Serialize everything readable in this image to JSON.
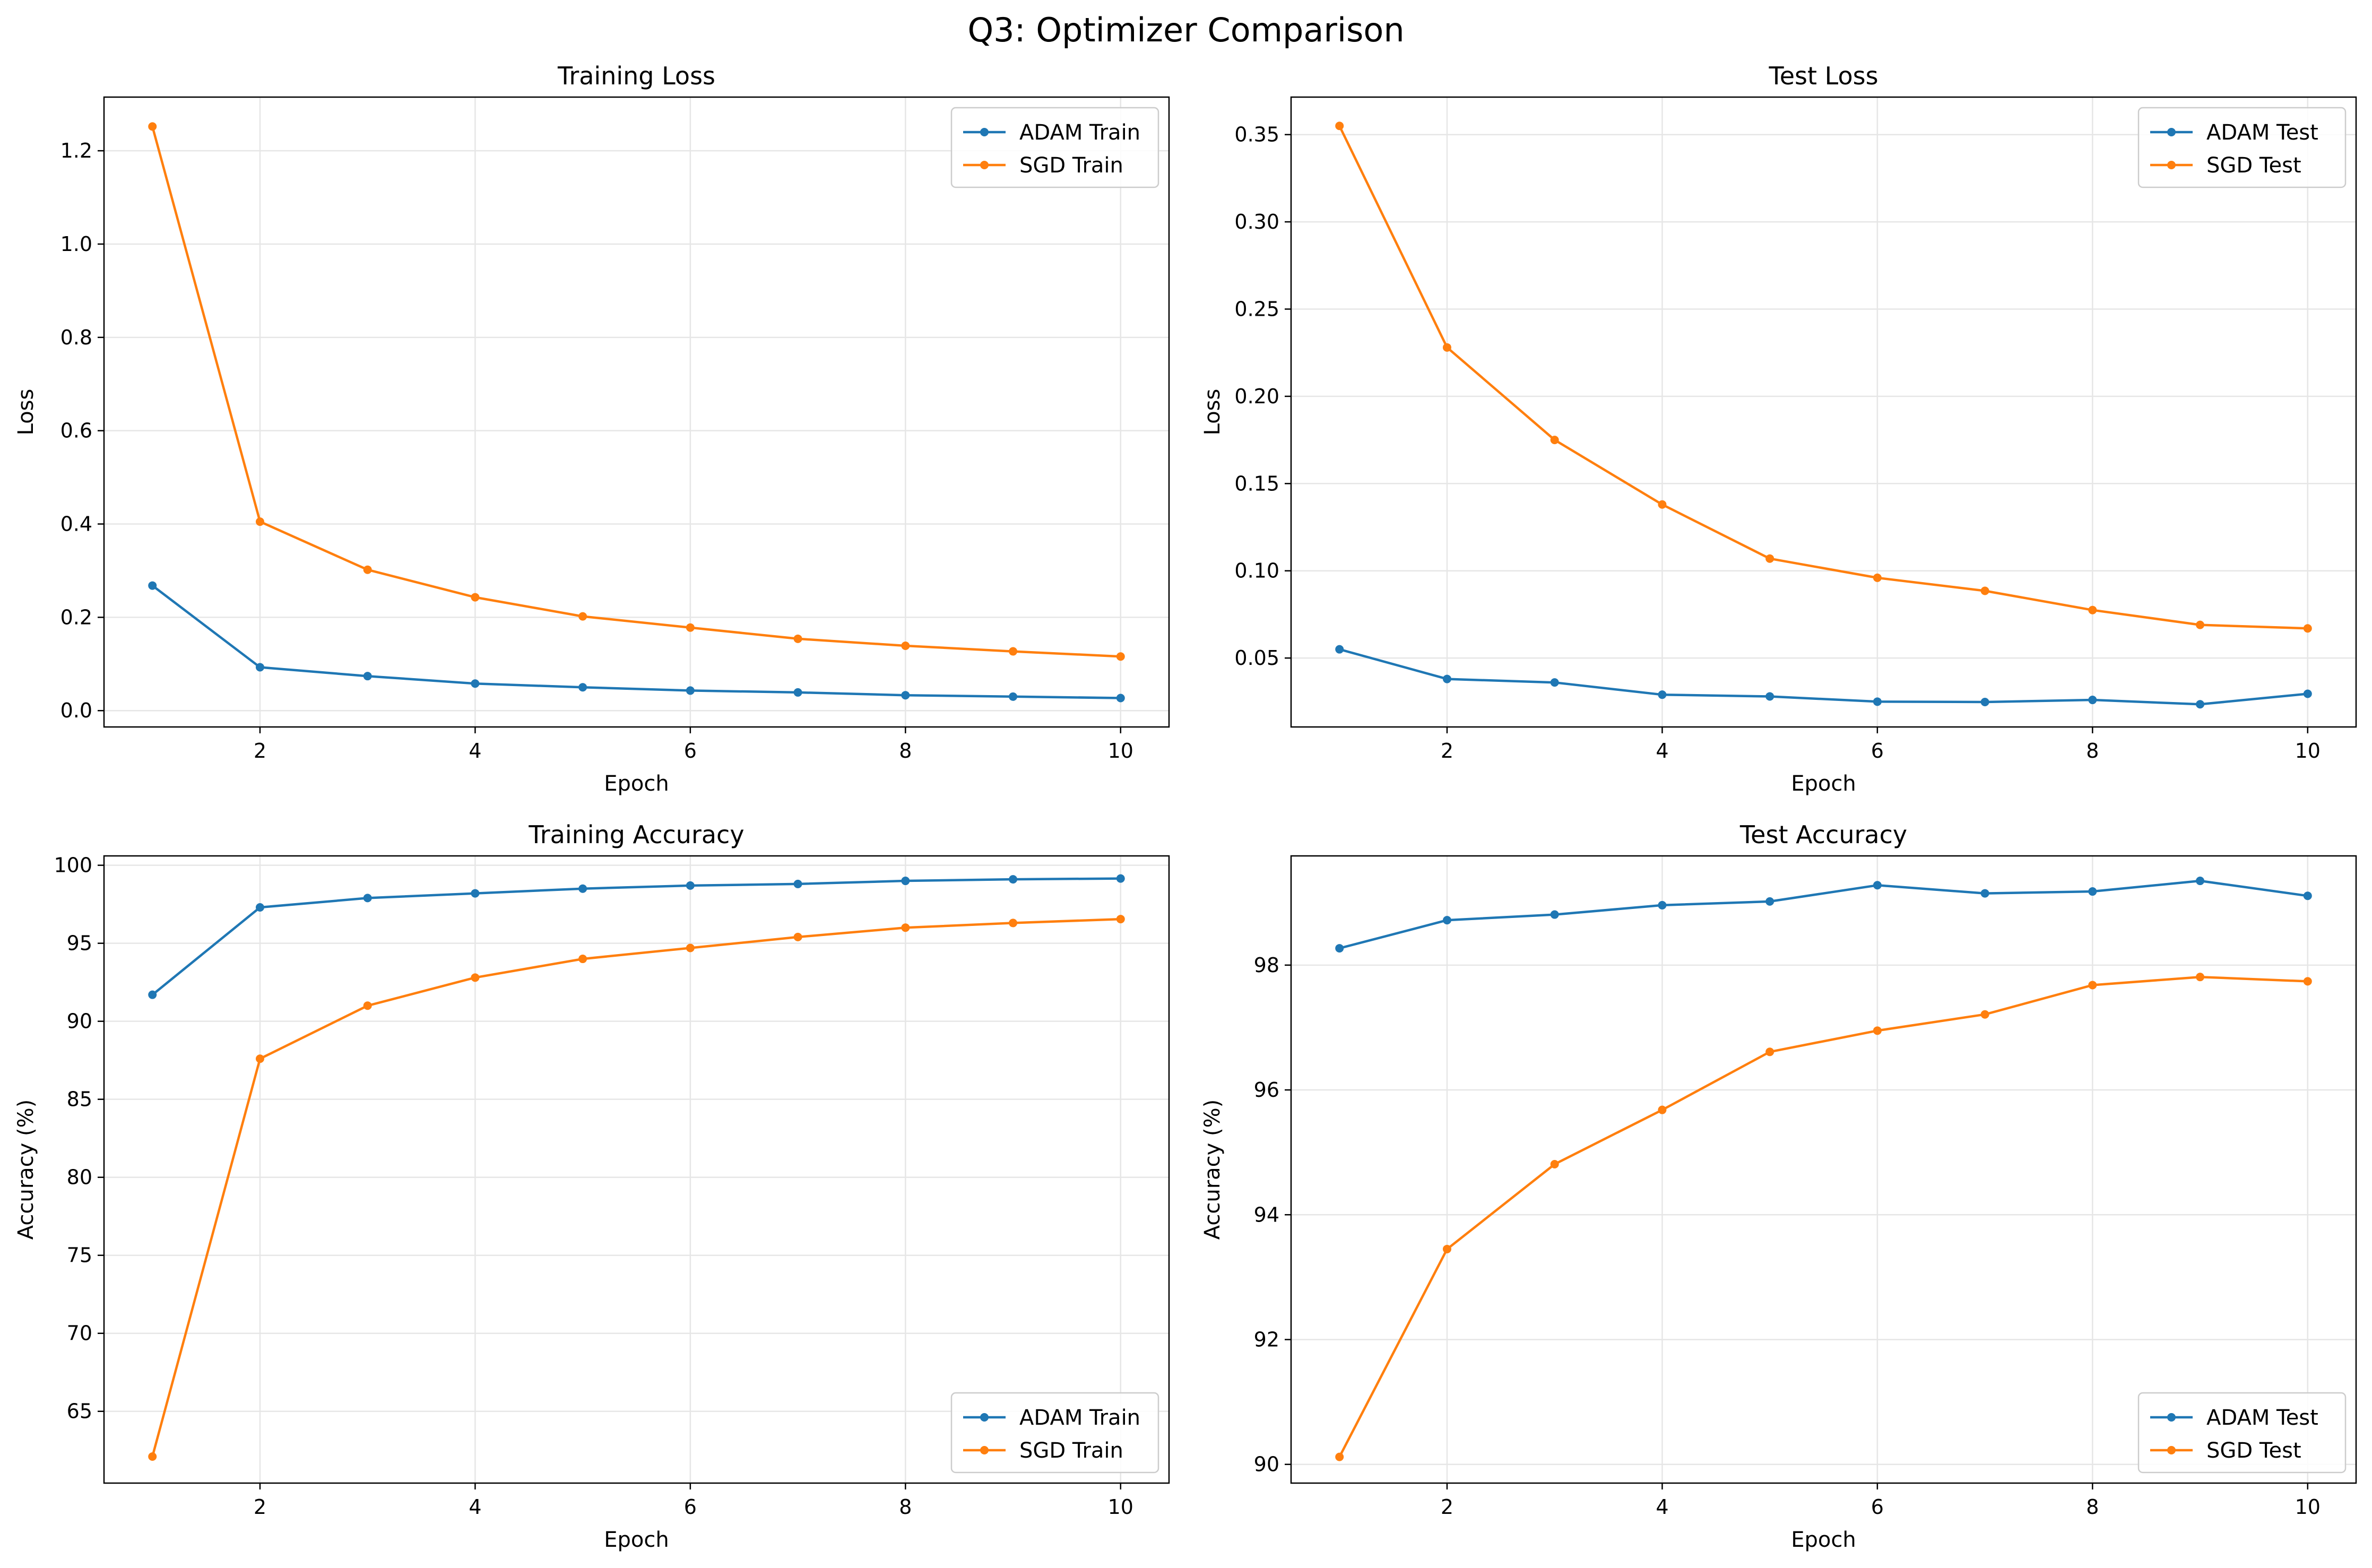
{
  "figure": {
    "suptitle": "Q3: Optimizer Comparison"
  },
  "colors": {
    "adam": "#1f77b4",
    "sgd": "#ff7f0e",
    "grid": "#e6e6e6",
    "axis": "#000000"
  },
  "chart_data": [
    {
      "type": "line",
      "title": "Training Loss",
      "xlabel": "Epoch",
      "ylabel": "Loss",
      "xlim": [
        0.55,
        10.45
      ],
      "ylim": [
        -0.035,
        1.315
      ],
      "xticks": [
        2,
        4,
        6,
        8,
        10
      ],
      "yticks": [
        0.0,
        0.2,
        0.4,
        0.6,
        0.8,
        1.0,
        1.2
      ],
      "ytick_labels": [
        "0.0",
        "0.2",
        "0.4",
        "0.6",
        "0.8",
        "1.0",
        "1.2"
      ],
      "grid": true,
      "legend_position": "top-right",
      "x": [
        1,
        2,
        3,
        4,
        5,
        6,
        7,
        8,
        9,
        10
      ],
      "series": [
        {
          "name": "ADAM Train",
          "color": "#1f77b4",
          "values": [
            0.268,
            0.093,
            0.074,
            0.058,
            0.05,
            0.043,
            0.039,
            0.033,
            0.03,
            0.027
          ]
        },
        {
          "name": "SGD Train",
          "color": "#ff7f0e",
          "values": [
            1.252,
            0.405,
            0.302,
            0.243,
            0.202,
            0.178,
            0.154,
            0.139,
            0.127,
            0.116
          ]
        }
      ]
    },
    {
      "type": "line",
      "title": "Test Loss",
      "xlabel": "Epoch",
      "ylabel": "Loss",
      "xlim": [
        0.55,
        10.45
      ],
      "ylim": [
        0.0105,
        0.3715
      ],
      "xticks": [
        2,
        4,
        6,
        8,
        10
      ],
      "yticks": [
        0.05,
        0.1,
        0.15,
        0.2,
        0.25,
        0.3,
        0.35
      ],
      "ytick_labels": [
        "0.05",
        "0.10",
        "0.15",
        "0.20",
        "0.25",
        "0.30",
        "0.35"
      ],
      "grid": true,
      "legend_position": "top-right",
      "x": [
        1,
        2,
        3,
        4,
        5,
        6,
        7,
        8,
        9,
        10
      ],
      "series": [
        {
          "name": "ADAM Test",
          "color": "#1f77b4",
          "values": [
            0.055,
            0.038,
            0.036,
            0.029,
            0.028,
            0.025,
            0.0248,
            0.026,
            0.0235,
            0.0295
          ]
        },
        {
          "name": "SGD Test",
          "color": "#ff7f0e",
          "values": [
            0.355,
            0.228,
            0.175,
            0.138,
            0.107,
            0.096,
            0.0885,
            0.0775,
            0.069,
            0.067
          ]
        }
      ]
    },
    {
      "type": "line",
      "title": "Training Accuracy",
      "xlabel": "Epoch",
      "ylabel": "Accuracy (%)",
      "xlim": [
        0.55,
        10.45
      ],
      "ylim": [
        60.4,
        100.6
      ],
      "xticks": [
        2,
        4,
        6,
        8,
        10
      ],
      "yticks": [
        65,
        70,
        75,
        80,
        85,
        90,
        95,
        100
      ],
      "ytick_labels": [
        "65",
        "70",
        "75",
        "80",
        "85",
        "90",
        "95",
        "100"
      ],
      "grid": true,
      "legend_position": "bottom-right",
      "x": [
        1,
        2,
        3,
        4,
        5,
        6,
        7,
        8,
        9,
        10
      ],
      "series": [
        {
          "name": "ADAM Train",
          "color": "#1f77b4",
          "values": [
            91.7,
            97.3,
            97.9,
            98.2,
            98.5,
            98.7,
            98.8,
            99.0,
            99.1,
            99.15
          ]
        },
        {
          "name": "SGD Train",
          "color": "#ff7f0e",
          "values": [
            62.1,
            87.6,
            91.0,
            92.8,
            94.0,
            94.7,
            95.4,
            96.0,
            96.3,
            96.55
          ]
        }
      ]
    },
    {
      "type": "line",
      "title": "Test Accuracy",
      "xlabel": "Epoch",
      "ylabel": "Accuracy (%)",
      "xlim": [
        0.55,
        10.45
      ],
      "ylim": [
        89.7,
        99.75
      ],
      "xticks": [
        2,
        4,
        6,
        8,
        10
      ],
      "yticks": [
        90,
        92,
        94,
        96,
        98
      ],
      "ytick_labels": [
        "90",
        "92",
        "94",
        "96",
        "98"
      ],
      "grid": true,
      "legend_position": "bottom-right",
      "x": [
        1,
        2,
        3,
        4,
        5,
        6,
        7,
        8,
        9,
        10
      ],
      "series": [
        {
          "name": "ADAM Test",
          "color": "#1f77b4",
          "values": [
            98.27,
            98.72,
            98.81,
            98.96,
            99.02,
            99.28,
            99.15,
            99.18,
            99.35,
            99.11
          ]
        },
        {
          "name": "SGD Test",
          "color": "#ff7f0e",
          "values": [
            90.12,
            93.45,
            94.81,
            95.68,
            96.61,
            96.95,
            97.21,
            97.68,
            97.81,
            97.74
          ]
        }
      ]
    }
  ]
}
